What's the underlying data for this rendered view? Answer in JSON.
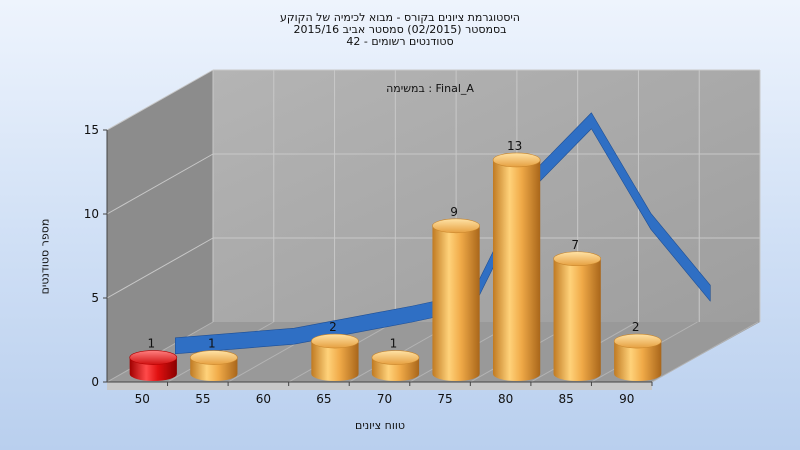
{
  "chart_data": {
    "type": "bar",
    "title_lines": [
      "היסטוגרמת ציונים בקורס - מבוא לכימיה של הקוקע",
      "בסמסטר (02/2015) סמסטר אביב 2015/16",
      "סטודנטים רשומים - 42"
    ],
    "subtitle": "במשימה : Final_A",
    "xlabel": "טווח ציונים",
    "ylabel": "מספר סטודנטים",
    "categories": [
      "50",
      "55",
      "60",
      "65",
      "70",
      "75",
      "80",
      "85",
      "90"
    ],
    "values": [
      1,
      1,
      0,
      2,
      1,
      9,
      13,
      7,
      2
    ],
    "highlight_category": "50",
    "yticks": [
      0,
      5,
      10,
      15
    ],
    "ylim": [
      0,
      15
    ],
    "grid": true,
    "curve": {
      "description": "distribution curve",
      "values": [
        0.2,
        0.5,
        0.8,
        1.5,
        2.2,
        3.0,
        10.5,
        14.3,
        8.0,
        3.5
      ]
    },
    "colors": {
      "bar": "#e8a13a",
      "bar_highlight": "#e01010",
      "curve": "#2f6fc4",
      "wall": "#aaaaaa",
      "side_wall": "#8a8a8a",
      "floor": "#9a9a9a"
    }
  }
}
